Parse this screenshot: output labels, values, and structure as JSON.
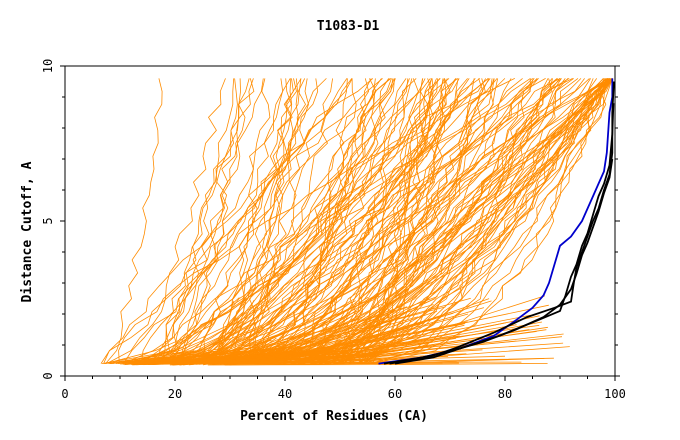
{
  "chart_data": {
    "type": "line",
    "title": "T1083-D1",
    "xlabel": "Percent of Residues (CA)",
    "ylabel": "Distance Cutoff, A",
    "xlim": [
      0,
      100
    ],
    "ylim": [
      0,
      10
    ],
    "x_ticks": [
      0,
      20,
      40,
      60,
      80,
      100
    ],
    "y_ticks": [
      0,
      5,
      10
    ],
    "grid": false,
    "legend": "none",
    "colors": {
      "background": "#ffffff",
      "bundle": "#ff8c00",
      "blue": "#0000cc",
      "black": "#000000"
    },
    "highlight_series": [
      {
        "color": "#0000cc",
        "x": [
          57,
          65,
          72,
          78,
          82,
          85,
          87,
          88,
          89,
          90,
          92,
          94,
          95,
          96,
          97,
          98,
          98.5,
          99,
          99.5,
          99.5
        ],
        "y": [
          0.4,
          0.6,
          0.9,
          1.3,
          1.8,
          2.2,
          2.6,
          3.0,
          3.6,
          4.2,
          4.5,
          5.0,
          5.4,
          5.8,
          6.2,
          6.6,
          7.2,
          8.5,
          9.0,
          9.6
        ]
      },
      {
        "color": "#000000",
        "x": [
          59,
          66,
          71,
          78,
          84,
          89,
          92,
          92.5,
          93,
          94,
          95,
          96,
          97,
          98,
          99,
          99.5,
          99.5,
          99.8
        ],
        "y": [
          0.4,
          0.6,
          0.9,
          1.4,
          1.9,
          2.2,
          2.4,
          3.0,
          3.5,
          4.0,
          4.5,
          5.0,
          5.4,
          6.0,
          6.5,
          7.2,
          8.5,
          9.5
        ]
      },
      {
        "color": "#000000",
        "x": [
          60,
          67,
          72,
          79,
          86,
          90,
          91,
          92,
          93,
          94,
          95,
          96,
          97,
          98,
          99,
          99.5,
          99.7
        ],
        "y": [
          0.4,
          0.6,
          0.9,
          1.3,
          1.8,
          2.1,
          2.6,
          3.2,
          3.6,
          4.2,
          4.6,
          5.2,
          5.8,
          6.2,
          6.8,
          7.8,
          8.8
        ]
      },
      {
        "color": "#000000",
        "x": [
          58,
          65,
          70,
          76,
          82,
          87,
          90,
          92,
          93,
          94,
          95,
          96,
          97,
          98,
          99,
          99.5
        ],
        "y": [
          0.4,
          0.6,
          0.8,
          1.1,
          1.5,
          1.9,
          2.3,
          2.8,
          3.3,
          3.9,
          4.3,
          4.8,
          5.3,
          5.9,
          6.4,
          7.0
        ]
      }
    ],
    "bundle_model": {
      "count": 160,
      "seed": 1083,
      "x_end_range": [
        10,
        99
      ],
      "y_start": 0.4,
      "y_end": 9.6
    }
  }
}
